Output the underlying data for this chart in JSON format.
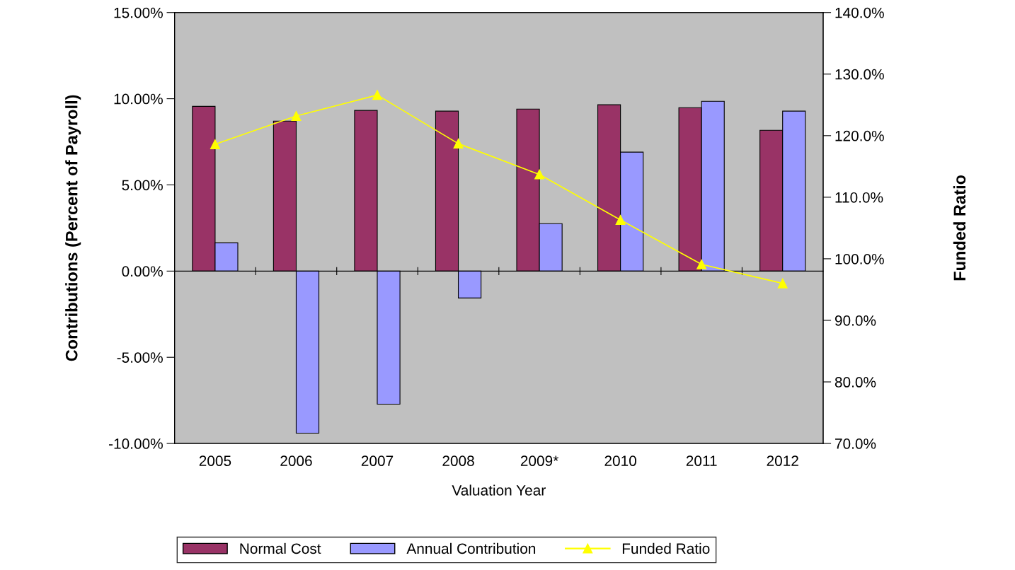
{
  "chart_data": {
    "type": "bar",
    "xlabel": "Valuation Year",
    "ylabel": "Contributions (Percent of Payroll)",
    "y2label": "Funded Ratio",
    "categories": [
      "2005",
      "2006",
      "2007",
      "2008",
      "2009*",
      "2010",
      "2011",
      "2012"
    ],
    "series": [
      {
        "name": "Normal Cost",
        "color": "#993366",
        "values": [
          9.56,
          8.7,
          9.32,
          9.28,
          9.4,
          9.65,
          9.48,
          8.17
        ]
      },
      {
        "name": "Annual Contribution",
        "color": "#9999ff",
        "values": [
          1.64,
          -9.4,
          -7.72,
          -1.56,
          2.75,
          6.9,
          9.85,
          9.28
        ]
      },
      {
        "name": "Funded Ratio",
        "type": "line",
        "axis": "y2",
        "color": "#ffff00",
        "marker": "triangle",
        "values": [
          118.6,
          123.2,
          126.6,
          118.7,
          113.7,
          106.3,
          99.1,
          96.0
        ]
      }
    ],
    "ylim": [
      -10,
      15
    ],
    "yticks": [
      {
        "value": -10,
        "label": "-10.00%"
      },
      {
        "value": -5,
        "label": "-5.00%"
      },
      {
        "value": 0,
        "label": "0.00%"
      },
      {
        "value": 5,
        "label": "5.00%"
      },
      {
        "value": 10,
        "label": "10.00%"
      },
      {
        "value": 15,
        "label": "15.00%"
      }
    ],
    "y2lim": [
      70,
      140
    ],
    "y2ticks": [
      {
        "value": 70,
        "label": "70.0%"
      },
      {
        "value": 80,
        "label": "80.0%"
      },
      {
        "value": 90,
        "label": "90.0%"
      },
      {
        "value": 100,
        "label": "100.0%"
      },
      {
        "value": 110,
        "label": "110.0%"
      },
      {
        "value": 120,
        "label": "120.0%"
      },
      {
        "value": 130,
        "label": "130.0%"
      },
      {
        "value": 140,
        "label": "140.0%"
      }
    ],
    "legend": "bottom"
  }
}
